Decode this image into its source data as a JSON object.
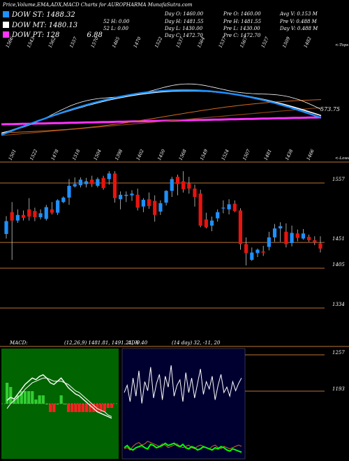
{
  "title": "Price,Volume,EMA,ADX,MACD Charts for AUROPHARMA MunafaSutra.com",
  "legend": [
    {
      "label": "DOW ST: 1488.32",
      "color": "#1e90ff"
    },
    {
      "label": "DOW MT: 1480.13",
      "color": "#ffffff"
    },
    {
      "label": "DOW PT: 128",
      "color": "#ff33ff",
      "extra": "6.88"
    }
  ],
  "stats": [
    [
      "Day O: 1460.00",
      "Pre O: 1460.00",
      "Avg V: 0.153 M"
    ],
    [
      "52 H: 0.00",
      "Day H: 1481.55",
      "Pre H: 1481.55",
      "Pre V: 0.488 M"
    ],
    [
      "52 L: 0.00",
      "Day L: 1430.00",
      "Pre L: 1430.00",
      "Day V: 0.488 M"
    ],
    [
      "Day C: 1472.70",
      "Pre C: 1472.70"
    ]
  ],
  "ema_panel": {
    "top_labels": [
      "1566",
      "1543",
      "1562",
      "1557",
      "1570",
      "1465",
      "1470",
      "1522",
      "1537",
      "1564",
      "1537",
      "1567",
      "1527",
      "1509",
      "1482"
    ],
    "top_right_label": "<-Tops",
    "low_labels": [
      "1501",
      "1522",
      "1478",
      "1518",
      "1504",
      "1398",
      "1402",
      "1450",
      "1568",
      "1549",
      "1524",
      "1507",
      "1481",
      "1438",
      "1466"
    ],
    "low_right_label": "<-Lows",
    "value_label": "573.75"
  },
  "chart_data": [
    {
      "type": "candlestick",
      "title": "Price",
      "y_ticks": [
        1557,
        1451,
        1405,
        1334
      ],
      "candles": [
        {
          "o": 1466,
          "h": 1498,
          "l": 1458,
          "c": 1489
        },
        {
          "o": 1505,
          "h": 1523,
          "l": 1420,
          "c": 1490
        },
        {
          "o": 1490,
          "h": 1510,
          "l": 1486,
          "c": 1500
        },
        {
          "o": 1500,
          "h": 1508,
          "l": 1490,
          "c": 1495
        },
        {
          "o": 1510,
          "h": 1530,
          "l": 1490,
          "c": 1497
        },
        {
          "o": 1507,
          "h": 1513,
          "l": 1489,
          "c": 1496
        },
        {
          "o": 1496,
          "h": 1510,
          "l": 1492,
          "c": 1503
        },
        {
          "o": 1493,
          "h": 1518,
          "l": 1490,
          "c": 1514
        },
        {
          "o": 1510,
          "h": 1523,
          "l": 1501,
          "c": 1504
        },
        {
          "o": 1504,
          "h": 1528,
          "l": 1500,
          "c": 1526
        },
        {
          "o": 1523,
          "h": 1533,
          "l": 1521,
          "c": 1531
        },
        {
          "o": 1531,
          "h": 1564,
          "l": 1518,
          "c": 1552
        },
        {
          "o": 1551,
          "h": 1567,
          "l": 1549,
          "c": 1555
        },
        {
          "o": 1553,
          "h": 1567,
          "l": 1549,
          "c": 1563
        },
        {
          "o": 1555,
          "h": 1566,
          "l": 1549,
          "c": 1560
        },
        {
          "o": 1563,
          "h": 1570,
          "l": 1550,
          "c": 1555
        },
        {
          "o": 1552,
          "h": 1567,
          "l": 1549,
          "c": 1564
        },
        {
          "o": 1566,
          "h": 1570,
          "l": 1545,
          "c": 1548
        },
        {
          "o": 1564,
          "h": 1578,
          "l": 1554,
          "c": 1574
        },
        {
          "o": 1574,
          "h": 1578,
          "l": 1522,
          "c": 1530
        },
        {
          "o": 1528,
          "h": 1542,
          "l": 1510,
          "c": 1536
        },
        {
          "o": 1534,
          "h": 1542,
          "l": 1523,
          "c": 1536
        },
        {
          "o": 1535,
          "h": 1544,
          "l": 1525,
          "c": 1538
        },
        {
          "o": 1536,
          "h": 1547,
          "l": 1508,
          "c": 1513
        },
        {
          "o": 1515,
          "h": 1530,
          "l": 1505,
          "c": 1527
        },
        {
          "o": 1528,
          "h": 1540,
          "l": 1511,
          "c": 1516
        },
        {
          "o": 1525,
          "h": 1535,
          "l": 1488,
          "c": 1500
        },
        {
          "o": 1506,
          "h": 1526,
          "l": 1500,
          "c": 1521
        },
        {
          "o": 1522,
          "h": 1544,
          "l": 1517,
          "c": 1543
        },
        {
          "o": 1543,
          "h": 1568,
          "l": 1532,
          "c": 1564
        },
        {
          "o": 1568,
          "h": 1572,
          "l": 1535,
          "c": 1555
        },
        {
          "o": 1560,
          "h": 1578,
          "l": 1540,
          "c": 1546
        },
        {
          "o": 1556,
          "h": 1568,
          "l": 1538,
          "c": 1547
        },
        {
          "o": 1547,
          "h": 1554,
          "l": 1515,
          "c": 1532
        },
        {
          "o": 1538,
          "h": 1545,
          "l": 1478,
          "c": 1481
        },
        {
          "o": 1492,
          "h": 1504,
          "l": 1476,
          "c": 1478
        },
        {
          "o": 1481,
          "h": 1497,
          "l": 1471,
          "c": 1490
        },
        {
          "o": 1494,
          "h": 1510,
          "l": 1488,
          "c": 1505
        },
        {
          "o": 1513,
          "h": 1526,
          "l": 1503,
          "c": 1513
        },
        {
          "o": 1510,
          "h": 1528,
          "l": 1501,
          "c": 1519
        },
        {
          "o": 1520,
          "h": 1526,
          "l": 1505,
          "c": 1507
        },
        {
          "o": 1508,
          "h": 1512,
          "l": 1438,
          "c": 1448
        },
        {
          "o": 1448,
          "h": 1460,
          "l": 1410,
          "c": 1432
        },
        {
          "o": 1420,
          "h": 1442,
          "l": 1418,
          "c": 1433
        },
        {
          "o": 1432,
          "h": 1440,
          "l": 1425,
          "c": 1438
        },
        {
          "o": 1435,
          "h": 1445,
          "l": 1427,
          "c": 1433
        },
        {
          "o": 1443,
          "h": 1470,
          "l": 1437,
          "c": 1460
        },
        {
          "o": 1460,
          "h": 1484,
          "l": 1452,
          "c": 1476
        },
        {
          "o": 1476,
          "h": 1487,
          "l": 1452,
          "c": 1480
        },
        {
          "o": 1470,
          "h": 1485,
          "l": 1442,
          "c": 1448
        },
        {
          "o": 1450,
          "h": 1481,
          "l": 1444,
          "c": 1468
        },
        {
          "o": 1467,
          "h": 1474,
          "l": 1453,
          "c": 1459
        },
        {
          "o": 1458,
          "h": 1475,
          "l": 1456,
          "c": 1467
        },
        {
          "o": 1461,
          "h": 1465,
          "l": 1452,
          "c": 1455
        },
        {
          "o": 1455,
          "h": 1462,
          "l": 1446,
          "c": 1451
        },
        {
          "o": 1449,
          "h": 1462,
          "l": 1433,
          "c": 1440
        }
      ]
    },
    {
      "type": "line",
      "title": "MACD",
      "label": "MACD",
      "params": "(12,26,9) 1481.81, 1491.21, -9.40",
      "series": [
        {
          "name": "MACD",
          "values": [
            2,
            4,
            3,
            6,
            9,
            12,
            14,
            16,
            15,
            17,
            18,
            16,
            13,
            12,
            14,
            16,
            13,
            10,
            8,
            6,
            5,
            3,
            1,
            -1,
            -3,
            -5,
            -6,
            -7,
            -8,
            -9
          ]
        },
        {
          "name": "Signal",
          "values": [
            -3,
            0,
            2,
            4,
            6,
            9,
            11,
            13,
            14,
            15,
            16,
            16,
            15,
            14,
            14,
            14,
            13,
            12,
            10,
            8,
            7,
            5,
            3,
            1,
            -1,
            -3,
            -4,
            -5,
            -7,
            -8
          ]
        }
      ],
      "histogram": [
        5,
        4,
        1,
        2,
        3,
        3,
        3,
        3,
        1,
        2,
        2,
        0,
        -2,
        -2,
        0,
        2,
        0,
        -2,
        -2,
        -2,
        -2,
        -2,
        -2,
        -2,
        -2,
        -2,
        -2,
        -2,
        -1,
        -1
      ]
    },
    {
      "type": "line",
      "title": "ADX",
      "label": "ADX",
      "params": "(14 day) 32, -11, 20",
      "y_ticks": [
        1257,
        1193
      ],
      "series": [
        {
          "name": "ADX",
          "values": [
            30,
            34,
            25,
            38,
            28,
            42,
            24,
            36,
            31,
            44,
            27,
            35,
            40,
            26,
            39,
            33,
            45,
            28,
            34,
            37,
            25,
            41,
            30,
            38,
            27,
            35,
            43,
            29,
            36,
            32,
            39,
            26,
            34,
            40,
            30,
            33,
            28,
            36,
            31,
            35,
            38
          ]
        },
        {
          "name": "+DI",
          "values": [
            8,
            9,
            7,
            10,
            12,
            13,
            11,
            12,
            14,
            13,
            12,
            11,
            10,
            12,
            11,
            9,
            10,
            11,
            12,
            10,
            9,
            10,
            11,
            9,
            8,
            10,
            11,
            10,
            9,
            8,
            10,
            11,
            9,
            8,
            10,
            9,
            8,
            9,
            10,
            11,
            10
          ]
        },
        {
          "name": "-DI",
          "values": [
            10,
            12,
            9,
            8,
            10,
            11,
            12,
            10,
            9,
            13,
            12,
            10,
            11,
            12,
            14,
            12,
            13,
            14,
            12,
            11,
            13,
            10,
            9,
            11,
            10,
            8,
            9,
            11,
            10,
            9,
            8,
            10,
            9,
            11,
            10,
            8,
            7,
            9,
            8,
            7,
            6
          ]
        }
      ]
    }
  ]
}
